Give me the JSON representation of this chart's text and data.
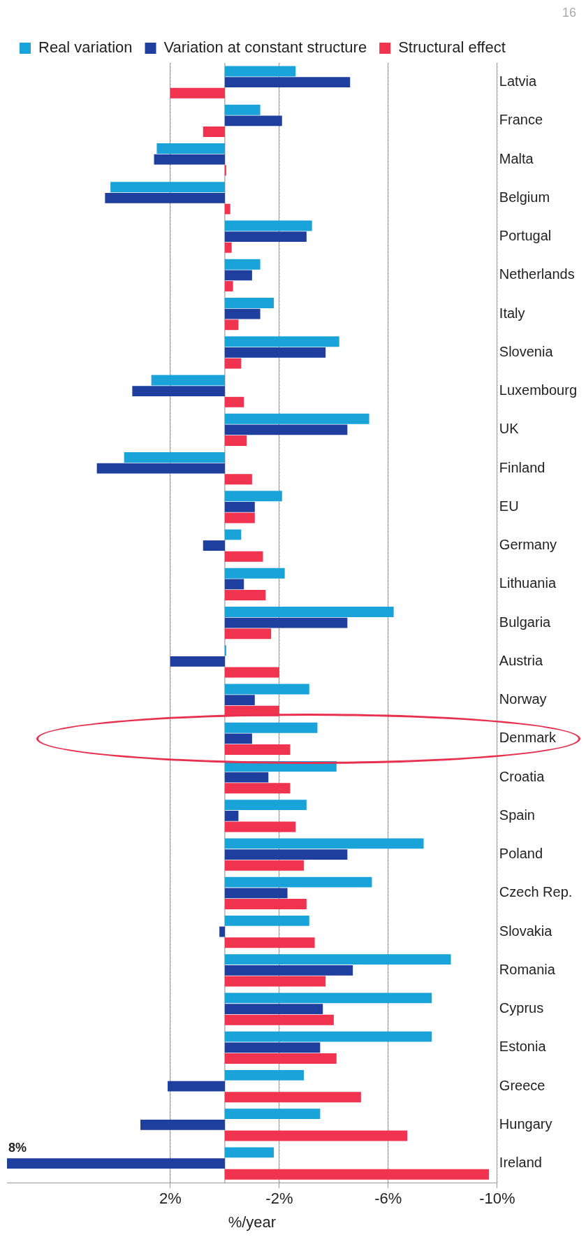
{
  "chart_data": {
    "type": "bar",
    "orientation": "horizontal",
    "categories": [
      "Latvia",
      "France",
      "Malta",
      "Belgium",
      "Portugal",
      "Netherlands",
      "Italy",
      "Slovenia",
      "Luxembourg",
      "UK",
      "Finland",
      "EU",
      "Germany",
      "Lithuania",
      "Bulgaria",
      "Austria",
      "Norway",
      "Denmark",
      "Croatia",
      "Spain",
      "Poland",
      "Czech Rep.",
      "Slovakia",
      "Romania",
      "Cyprus",
      "Estonia",
      "Greece",
      "Hungary",
      "Ireland"
    ],
    "series": [
      {
        "name": "Real variation",
        "color": "#1aa3d9",
        "values": [
          -2.6,
          -1.3,
          2.5,
          4.2,
          -3.2,
          -1.3,
          -1.8,
          -4.2,
          2.7,
          -5.3,
          3.7,
          -2.1,
          -0.6,
          -2.2,
          -6.2,
          -0.05,
          -3.1,
          -3.4,
          -4.1,
          -3.0,
          -7.3,
          -5.4,
          -3.1,
          -8.3,
          -7.6,
          -7.6,
          -2.9,
          -3.5,
          -1.8
        ]
      },
      {
        "name": "Variation at constant structure",
        "color": "#1f3f9e",
        "values": [
          -4.6,
          -2.1,
          2.6,
          4.4,
          -3.0,
          -1.0,
          -1.3,
          -3.7,
          3.4,
          -4.5,
          4.7,
          -1.1,
          0.8,
          -0.7,
          -4.5,
          2.0,
          -1.1,
          -1.0,
          -1.6,
          -0.5,
          -4.5,
          -2.3,
          0.2,
          -4.7,
          -3.6,
          -3.5,
          2.1,
          3.1,
          8
        ]
      },
      {
        "name": "Structural effect",
        "color": "#f0344f",
        "values": [
          2.0,
          0.8,
          -0.05,
          -0.2,
          -0.25,
          -0.3,
          -0.5,
          -0.6,
          -0.7,
          -0.8,
          -1.0,
          -1.1,
          -1.4,
          -1.5,
          -1.7,
          -2.0,
          -2.0,
          -2.4,
          -2.4,
          -2.6,
          -2.9,
          -3.0,
          -3.3,
          -3.7,
          -4.0,
          -4.1,
          -5.0,
          -6.7,
          -9.7
        ]
      }
    ],
    "xlim": [
      8,
      -10
    ],
    "xticks": [
      {
        "value": 2,
        "label": "2%"
      },
      {
        "value": -2,
        "label": "-2%"
      },
      {
        "value": -6,
        "label": "-6%"
      },
      {
        "value": -10,
        "label": "-10%"
      }
    ],
    "xlabel": "%/year",
    "grid": "x",
    "legend": "top",
    "annotations": [
      {
        "text": "8%",
        "x": 8,
        "y": "Ireland"
      },
      "16"
    ]
  }
}
